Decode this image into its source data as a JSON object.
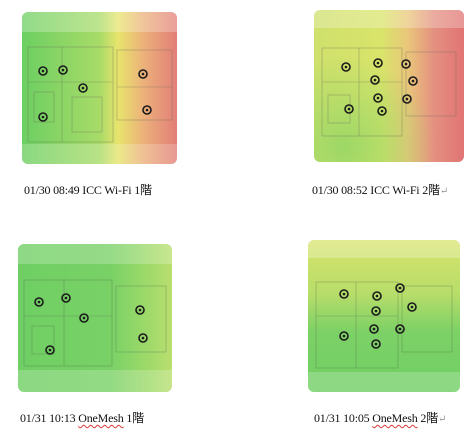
{
  "panels": [
    {
      "id": "p1",
      "caption": {
        "pre": "01/30 08:49 ICC Wi-Fi 1",
        "squiggle": "",
        "suffix": "階",
        "mark": ""
      }
    },
    {
      "id": "p2",
      "caption": {
        "pre": "01/30 08:52 ICC Wi-Fi 2",
        "squiggle": "",
        "suffix": "階",
        "mark": "↵"
      }
    },
    {
      "id": "p3",
      "caption": {
        "pre": "01/31 10:13 ",
        "squiggle": "OneMesh",
        "suffix": " 1階",
        "mark": ""
      }
    },
    {
      "id": "p4",
      "caption": {
        "pre": "01/31 10:05 ",
        "squiggle": "OneMesh",
        "suffix": " 2階",
        "mark": "↵"
      }
    }
  ],
  "colors": {
    "strong": "#6ccf62",
    "medium": "#d8e46a",
    "weak": "#e58a7a",
    "ap_marker": "#1a1a1a"
  }
}
